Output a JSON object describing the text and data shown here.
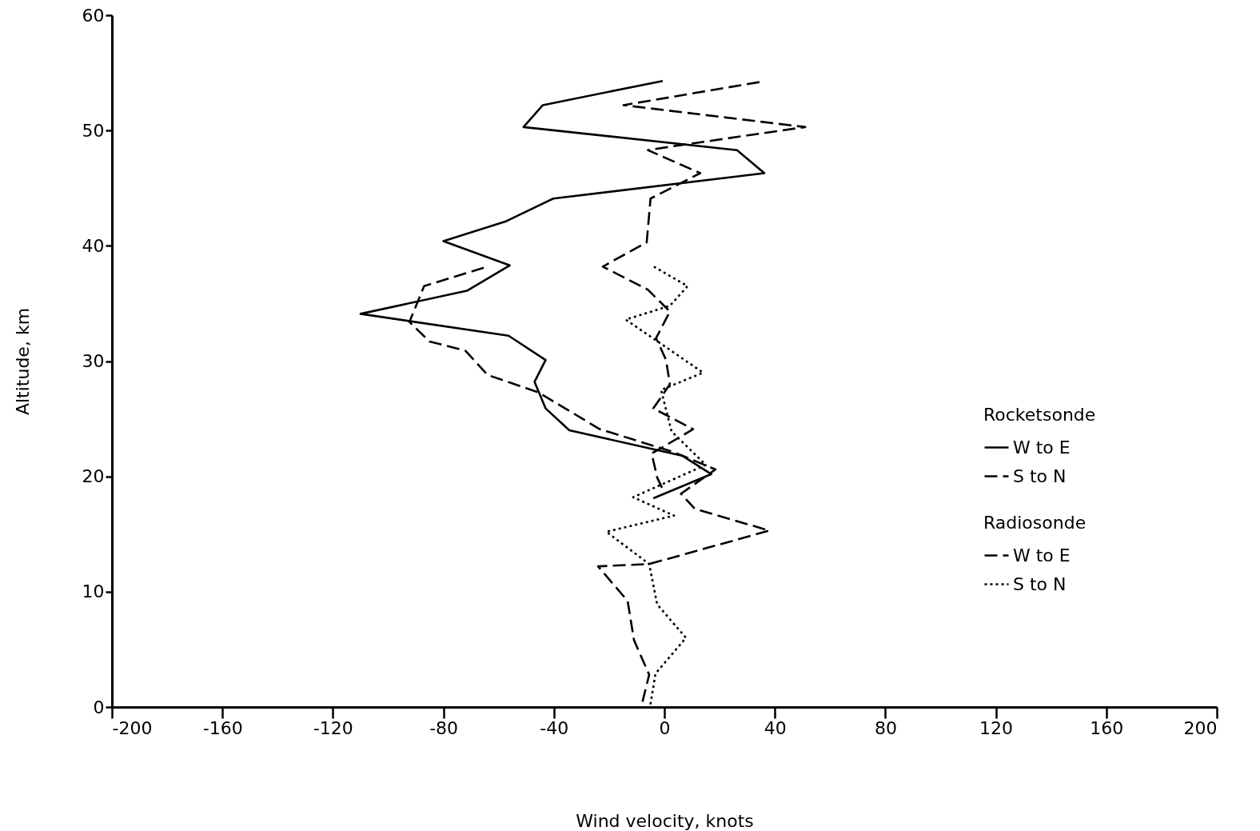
{
  "chart_data": {
    "type": "line",
    "xlabel": "Wind velocity, knots",
    "ylabel": "Altitude, km",
    "legend_title": [
      "Rocketsonde",
      "Radiosonde"
    ],
    "legend": "right",
    "grid": false,
    "xlim": [
      -200,
      200
    ],
    "xticks": [
      -200,
      -160,
      -120,
      -80,
      -40,
      0,
      40,
      80,
      120,
      160,
      200
    ],
    "ylim": [
      0,
      60
    ],
    "yticks": [
      0,
      10,
      20,
      30,
      40,
      50,
      60
    ],
    "series": [
      {
        "name": "W to E",
        "color": "#000000",
        "line_style": "solid",
        "x": [
          -0.6,
          -44,
          -51,
          26.3,
          36.2,
          -40.2,
          -57.6,
          -80,
          -56,
          -71.5,
          -110,
          -56.4,
          -43,
          -47,
          -43,
          -34.4,
          6.4,
          17,
          -4
        ],
        "values": [
          54.3,
          52.2,
          50.3,
          48.3,
          46.3,
          44.1,
          42.1,
          40.4,
          38.3,
          36.1,
          34.1,
          32.2,
          30.1,
          28.2,
          25.9,
          24,
          21.8,
          20.2,
          18.1
        ]
      },
      {
        "name": "S to N",
        "color": "#000000",
        "line_style": "dashed",
        "x": [
          34.4,
          -14.8,
          51,
          5,
          -6,
          13,
          -5,
          -6.4,
          -22.3,
          -6,
          2,
          -3,
          0.6,
          2,
          -4,
          10.4,
          -2.3,
          -4.6,
          -2.6,
          0.2
        ],
        "values": [
          54.2,
          52.2,
          50.3,
          48.7,
          48.3,
          46.3,
          44.1,
          40.3,
          38.2,
          36.2,
          34.3,
          32,
          30.1,
          28,
          25.9,
          24.1,
          22.3,
          22,
          19.9,
          18.5
        ]
      },
      {
        "name": "W to E",
        "color": "#000000",
        "line_style": "dashed",
        "x": [
          -65.4,
          -87,
          -92.3,
          -85,
          -72,
          -64,
          -45.7,
          -23.4,
          3.5,
          18.5,
          6,
          11,
          38,
          -5.5,
          -24,
          -13.3,
          -11,
          -5.5,
          -8.4
        ],
        "values": [
          38.1,
          36.5,
          33.4,
          31.7,
          30.9,
          28.8,
          27.3,
          24.1,
          22.1,
          20.6,
          18.5,
          17.2,
          15.3,
          12.4,
          12.2,
          9.2,
          5.8,
          2.8,
          0
        ]
      },
      {
        "name": "S to N",
        "color": "#000000",
        "line_style": "dotted",
        "x": [
          -3.8,
          8.4,
          2,
          -14,
          -3,
          14,
          -1.2,
          2.6,
          15,
          -11.3,
          3.5,
          -21,
          -5.5,
          -2.6,
          7.8,
          -3.2,
          -5.2
        ],
        "values": [
          38.2,
          36.5,
          34.8,
          33.6,
          31.8,
          29,
          27.5,
          23.9,
          21,
          18.2,
          16.6,
          15.2,
          12.4,
          8.9,
          6,
          2.9,
          0
        ]
      }
    ]
  }
}
